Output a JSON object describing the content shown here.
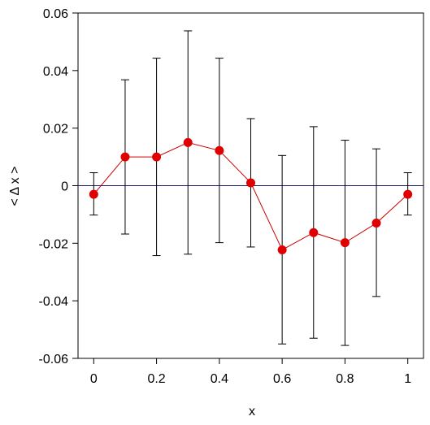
{
  "chart_data": {
    "type": "scatter",
    "xlabel": "x",
    "ylabel": "< Δ x >",
    "xlim": [
      -0.05,
      1.05
    ],
    "ylim": [
      -0.06,
      0.06
    ],
    "x_ticks": [
      0,
      0.2,
      0.4,
      0.6,
      0.8,
      1
    ],
    "x_tick_labels": [
      "0",
      "0.2",
      "0.4",
      "0.6",
      "0.8",
      "1"
    ],
    "y_ticks": [
      -0.06,
      -0.04,
      -0.02,
      0,
      0.02,
      0.04,
      0.06
    ],
    "y_tick_labels": [
      "-0.06",
      "-0.04",
      "-0.02",
      "0",
      "0.02",
      "0.04",
      "0.06"
    ],
    "reference_line_y": 0,
    "grid": false,
    "series": [
      {
        "x": [
          0,
          0.1,
          0.2,
          0.3,
          0.4,
          0.5,
          0.6,
          0.7,
          0.8,
          0.9,
          1.0
        ],
        "y": [
          -0.003,
          0.01,
          0.01,
          0.015,
          0.0122,
          0.001,
          -0.0223,
          -0.0163,
          -0.0198,
          -0.013,
          -0.003
        ],
        "error_low": [
          -0.0102,
          -0.0168,
          -0.0243,
          -0.0238,
          -0.0198,
          -0.0213,
          -0.055,
          -0.053,
          -0.0555,
          -0.0385,
          -0.0102
        ],
        "error_high": [
          0.0045,
          0.0368,
          0.0443,
          0.0538,
          0.0443,
          0.0233,
          0.0105,
          0.0205,
          0.0158,
          0.0128,
          0.0045
        ],
        "color": "#e00000",
        "line_color": "#cc0000",
        "errorbar_color": "#000000"
      }
    ],
    "colors": {
      "axis": "#000000",
      "reference_line": "#1a1a66"
    }
  }
}
